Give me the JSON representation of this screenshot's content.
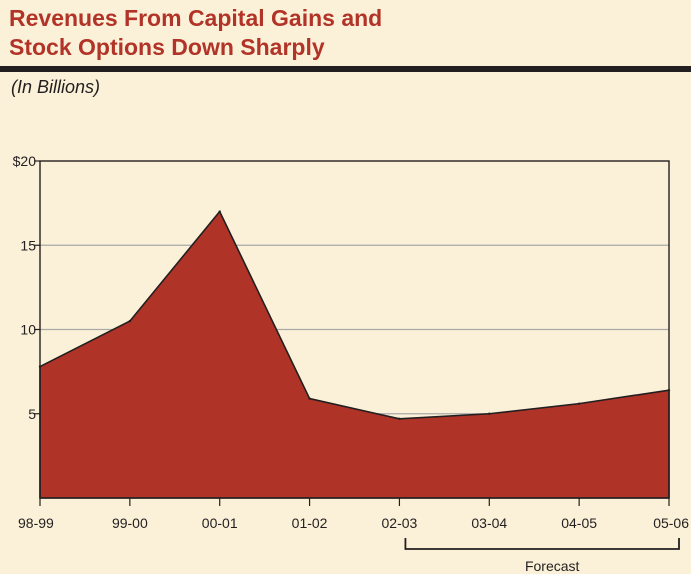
{
  "header": {
    "title_line1": "Revenues From Capital Gains and",
    "title_line2": "Stock Options Down Sharply",
    "subtitle": "(In Billions)"
  },
  "colors": {
    "title": "#b23327",
    "area_fill": "#b03327",
    "area_stroke": "#231f20",
    "background": "#fbf1d8",
    "gridline": "#a9a9a9"
  },
  "chart_data": {
    "type": "area",
    "title": "Revenues From Capital Gains and Stock Options Down Sharply",
    "ylabel": "(In Billions)",
    "xlabel": "",
    "categories": [
      "98-99",
      "99-00",
      "00-01",
      "01-02",
      "02-03",
      "03-04",
      "04-05",
      "05-06"
    ],
    "series": [
      {
        "name": "Revenues",
        "values": [
          7.8,
          10.5,
          17.0,
          5.9,
          4.7,
          5.0,
          5.6,
          6.4
        ]
      }
    ],
    "ylim": [
      0,
      20
    ],
    "yticks": [
      5,
      10,
      15,
      20
    ],
    "ytick_labels": [
      "5",
      "10",
      "15",
      "$20"
    ],
    "grid": true,
    "annotations": [
      {
        "text": "Forecast",
        "from_category": "02-03",
        "to_category": "05-06"
      }
    ]
  }
}
